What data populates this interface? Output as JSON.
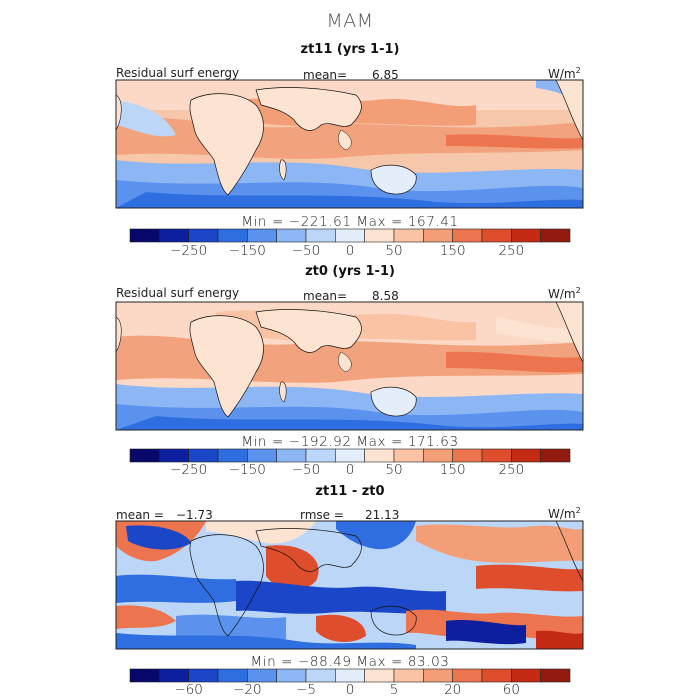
{
  "title": "MAM",
  "units_label": "W/m",
  "units_sup": "2",
  "panels": [
    {
      "title": "zt11 (yrs 1-1)",
      "field_label": "Residual surf energy",
      "stat_label": "mean=",
      "stat_value": "6.85",
      "minmax": "Min = −221.61 Max = 167.41",
      "colorbar_colors": [
        "#08086b",
        "#0d1f9f",
        "#1b46c8",
        "#2f6ee0",
        "#5b92ee",
        "#8cb6f4",
        "#bcd6f8",
        "#e4eefb",
        "#fde4d2",
        "#f9c3a4",
        "#f39e77",
        "#ec7550",
        "#de4e2c",
        "#c42a14",
        "#931a0e"
      ],
      "colorbar_ticks": [
        "−250",
        "−150",
        "−50",
        "0",
        "50",
        "150",
        "250"
      ]
    },
    {
      "title": "zt0 (yrs 1-1)",
      "field_label": "Residual surf energy",
      "stat_label": "mean=",
      "stat_value": "8.58",
      "minmax": "Min = −192.92 Max = 171.63",
      "colorbar_colors": [
        "#08086b",
        "#0d1f9f",
        "#1b46c8",
        "#2f6ee0",
        "#5b92ee",
        "#8cb6f4",
        "#bcd6f8",
        "#e4eefb",
        "#fde4d2",
        "#f9c3a4",
        "#f39e77",
        "#ec7550",
        "#de4e2c",
        "#c42a14",
        "#931a0e"
      ],
      "colorbar_ticks": [
        "−250",
        "−150",
        "−50",
        "0",
        "50",
        "150",
        "250"
      ]
    },
    {
      "title": "zt11 - zt0",
      "field_label": "mean =",
      "field_value": "−1.73",
      "stat_label": "rmse =",
      "stat_value": "21.13",
      "minmax": "Min = −88.49 Max = 83.03",
      "colorbar_colors": [
        "#08086b",
        "#0d1f9f",
        "#1b46c8",
        "#2f6ee0",
        "#5b92ee",
        "#8cb6f4",
        "#bcd6f8",
        "#e4eefb",
        "#fde4d2",
        "#f9c3a4",
        "#f39e77",
        "#ec7550",
        "#de4e2c",
        "#c42a14",
        "#931a0e"
      ],
      "colorbar_ticks": [
        "−60",
        "−20",
        "−5",
        "0",
        "5",
        "20",
        "60"
      ]
    }
  ],
  "chart_data": [
    {
      "type": "heatmap",
      "title": "zt11 (yrs 1-1)",
      "variable": "Residual surf energy",
      "units": "W/m2",
      "mean": 6.85,
      "min": -221.61,
      "max": 167.41,
      "colorbar_ticks": [
        -250,
        -150,
        -50,
        0,
        50,
        150,
        250
      ]
    },
    {
      "type": "heatmap",
      "title": "zt0 (yrs 1-1)",
      "variable": "Residual surf energy",
      "units": "W/m2",
      "mean": 8.58,
      "min": -192.92,
      "max": 171.63,
      "colorbar_ticks": [
        -250,
        -150,
        -50,
        0,
        50,
        150,
        250
      ]
    },
    {
      "type": "heatmap",
      "title": "zt11 - zt0",
      "units": "W/m2",
      "mean": -1.73,
      "rmse": 21.13,
      "min": -88.49,
      "max": 83.03,
      "colorbar_ticks": [
        -60,
        -20,
        -5,
        0,
        5,
        20,
        60
      ]
    }
  ]
}
